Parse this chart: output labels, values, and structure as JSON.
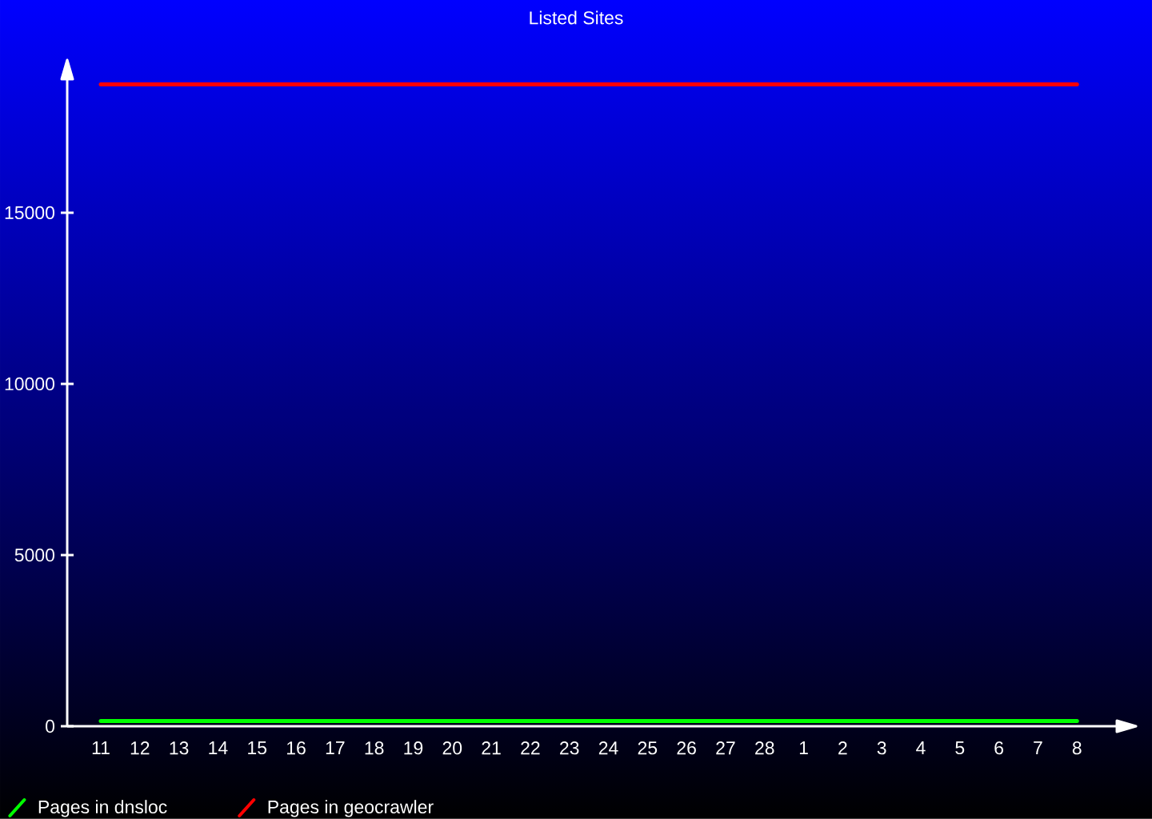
{
  "chart_data": {
    "type": "line",
    "title": "Listed Sites",
    "categories": [
      "11",
      "12",
      "13",
      "14",
      "15",
      "16",
      "17",
      "18",
      "19",
      "20",
      "21",
      "22",
      "23",
      "24",
      "25",
      "26",
      "27",
      "28",
      "1",
      "2",
      "3",
      "4",
      "5",
      "6",
      "7",
      "8"
    ],
    "series": [
      {
        "name": "Pages in dnsloc",
        "color": "#00ff00",
        "values": [
          150,
          150,
          150,
          150,
          150,
          150,
          150,
          150,
          150,
          150,
          150,
          150,
          150,
          150,
          150,
          150,
          150,
          150,
          150,
          150,
          150,
          150,
          150,
          150,
          150,
          150
        ]
      },
      {
        "name": "Pages in geocrawler",
        "color": "#ff0000",
        "values": [
          18750,
          18750,
          18750,
          18750,
          18750,
          18750,
          18750,
          18750,
          18750,
          18750,
          18750,
          18750,
          18750,
          18750,
          18750,
          18750,
          18750,
          18750,
          18750,
          18750,
          18750,
          18750,
          18750,
          18750,
          18750,
          18750
        ]
      }
    ],
    "ylim": [
      0,
      18900
    ],
    "yticks": [
      0,
      5000,
      10000,
      15000
    ],
    "legend": "bottom left"
  }
}
